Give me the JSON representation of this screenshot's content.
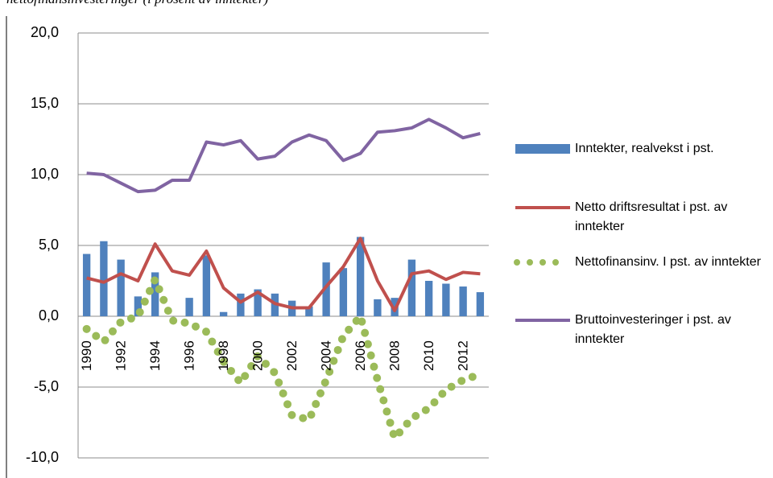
{
  "chart_data": {
    "type": "bar-line",
    "title": "nettofinansinvesteringer (i prosent av inntekter)",
    "categories": [
      "1990",
      null,
      "1992",
      null,
      "1994",
      null,
      "1996",
      null,
      "1998",
      null,
      "2000",
      null,
      "2002",
      null,
      "2004",
      null,
      "2006",
      null,
      "2008",
      null,
      "2010",
      null,
      "2012",
      null
    ],
    "series": [
      {
        "name": "Inntekter, realvekst i pst.",
        "type": "bar",
        "color": "#4f81bd",
        "values": [
          4.4,
          5.3,
          4.0,
          1.4,
          3.1,
          0,
          1.3,
          4.3,
          0.3,
          1.6,
          1.9,
          1.6,
          1.1,
          0.7,
          3.8,
          3.4,
          5.6,
          1.2,
          1.3,
          4.0,
          2.5,
          2.3,
          2.1,
          1.7
        ]
      },
      {
        "name": "Netto driftsresultat i pst. av inntekter",
        "type": "line",
        "color": "#c0504d",
        "values": [
          2.7,
          2.4,
          3.0,
          2.5,
          5.1,
          3.2,
          2.9,
          4.6,
          2.0,
          1.0,
          1.7,
          0.9,
          0.6,
          0.6,
          2.1,
          3.5,
          5.5,
          2.5,
          0.4,
          3.0,
          3.2,
          2.6,
          3.1,
          3.0
        ]
      },
      {
        "name": "Nettofinansinv. I pst. av inntekter",
        "type": "dotted",
        "color": "#9bbb59",
        "values": [
          -0.9,
          -1.8,
          -0.4,
          0.0,
          2.6,
          -0.3,
          -0.5,
          -1.1,
          -3.2,
          -4.7,
          -2.8,
          -4.0,
          -7.0,
          -7.3,
          -4.5,
          -1.4,
          0.0,
          -4.5,
          -8.6,
          -7.2,
          -6.5,
          -5.2,
          -4.5,
          -4.1
        ]
      },
      {
        "name": "Bruttoinvesteringer i pst. av inntekter",
        "type": "line",
        "color": "#8064a2",
        "values": [
          10.1,
          10.0,
          9.4,
          8.8,
          8.9,
          9.6,
          9.6,
          12.3,
          12.1,
          12.4,
          11.1,
          11.3,
          12.3,
          12.8,
          12.4,
          11.0,
          11.5,
          13.0,
          13.1,
          13.3,
          13.9,
          13.3,
          12.6,
          12.9
        ]
      }
    ],
    "ylim": [
      -10,
      20
    ],
    "yticks": [
      {
        "value": -10,
        "label": "-10,0"
      },
      {
        "value": -5,
        "label": "-5,0"
      },
      {
        "value": 0,
        "label": "0,0"
      },
      {
        "value": 5,
        "label": "5,0"
      },
      {
        "value": 10,
        "label": "10,0"
      },
      {
        "value": 15,
        "label": "15,0"
      },
      {
        "value": 20,
        "label": "20,0"
      }
    ],
    "grid": true,
    "legend": "right"
  }
}
